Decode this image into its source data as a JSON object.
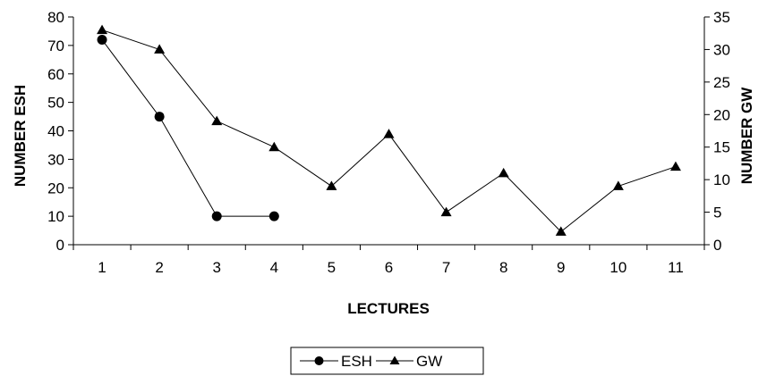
{
  "chart_data": {
    "type": "line",
    "x": [
      1,
      2,
      3,
      4,
      5,
      6,
      7,
      8,
      9,
      10,
      11
    ],
    "x_tick_labels": [
      "1",
      "2",
      "3",
      "4",
      "5",
      "6",
      "7",
      "8",
      "9",
      "10",
      "11"
    ],
    "xlabel": "LECTURES",
    "ylabel_left": "NUMBER ESH",
    "ylabel_right": "NUMBER GW",
    "ylim_left": [
      0,
      80
    ],
    "ylim_right": [
      0,
      35
    ],
    "y_left_ticks": [
      0,
      10,
      20,
      30,
      40,
      50,
      60,
      70,
      80
    ],
    "y_right_ticks": [
      0,
      5,
      10,
      15,
      20,
      25,
      30,
      35
    ],
    "grid": false,
    "legend_position": "bottom-center",
    "series": [
      {
        "name": "ESH",
        "axis": "left",
        "marker": "circle",
        "x": [
          1,
          2,
          3,
          4
        ],
        "values": [
          72,
          45,
          10,
          10
        ]
      },
      {
        "name": "GW",
        "axis": "right",
        "marker": "triangle",
        "x": [
          1,
          2,
          3,
          4,
          5,
          6,
          7,
          8,
          9,
          10,
          11
        ],
        "values": [
          33,
          30,
          19,
          15,
          9,
          17,
          5,
          11,
          2,
          9,
          12
        ]
      }
    ],
    "colors": {
      "line": "#000000",
      "marker": "#000000",
      "axis": "#000000"
    }
  }
}
